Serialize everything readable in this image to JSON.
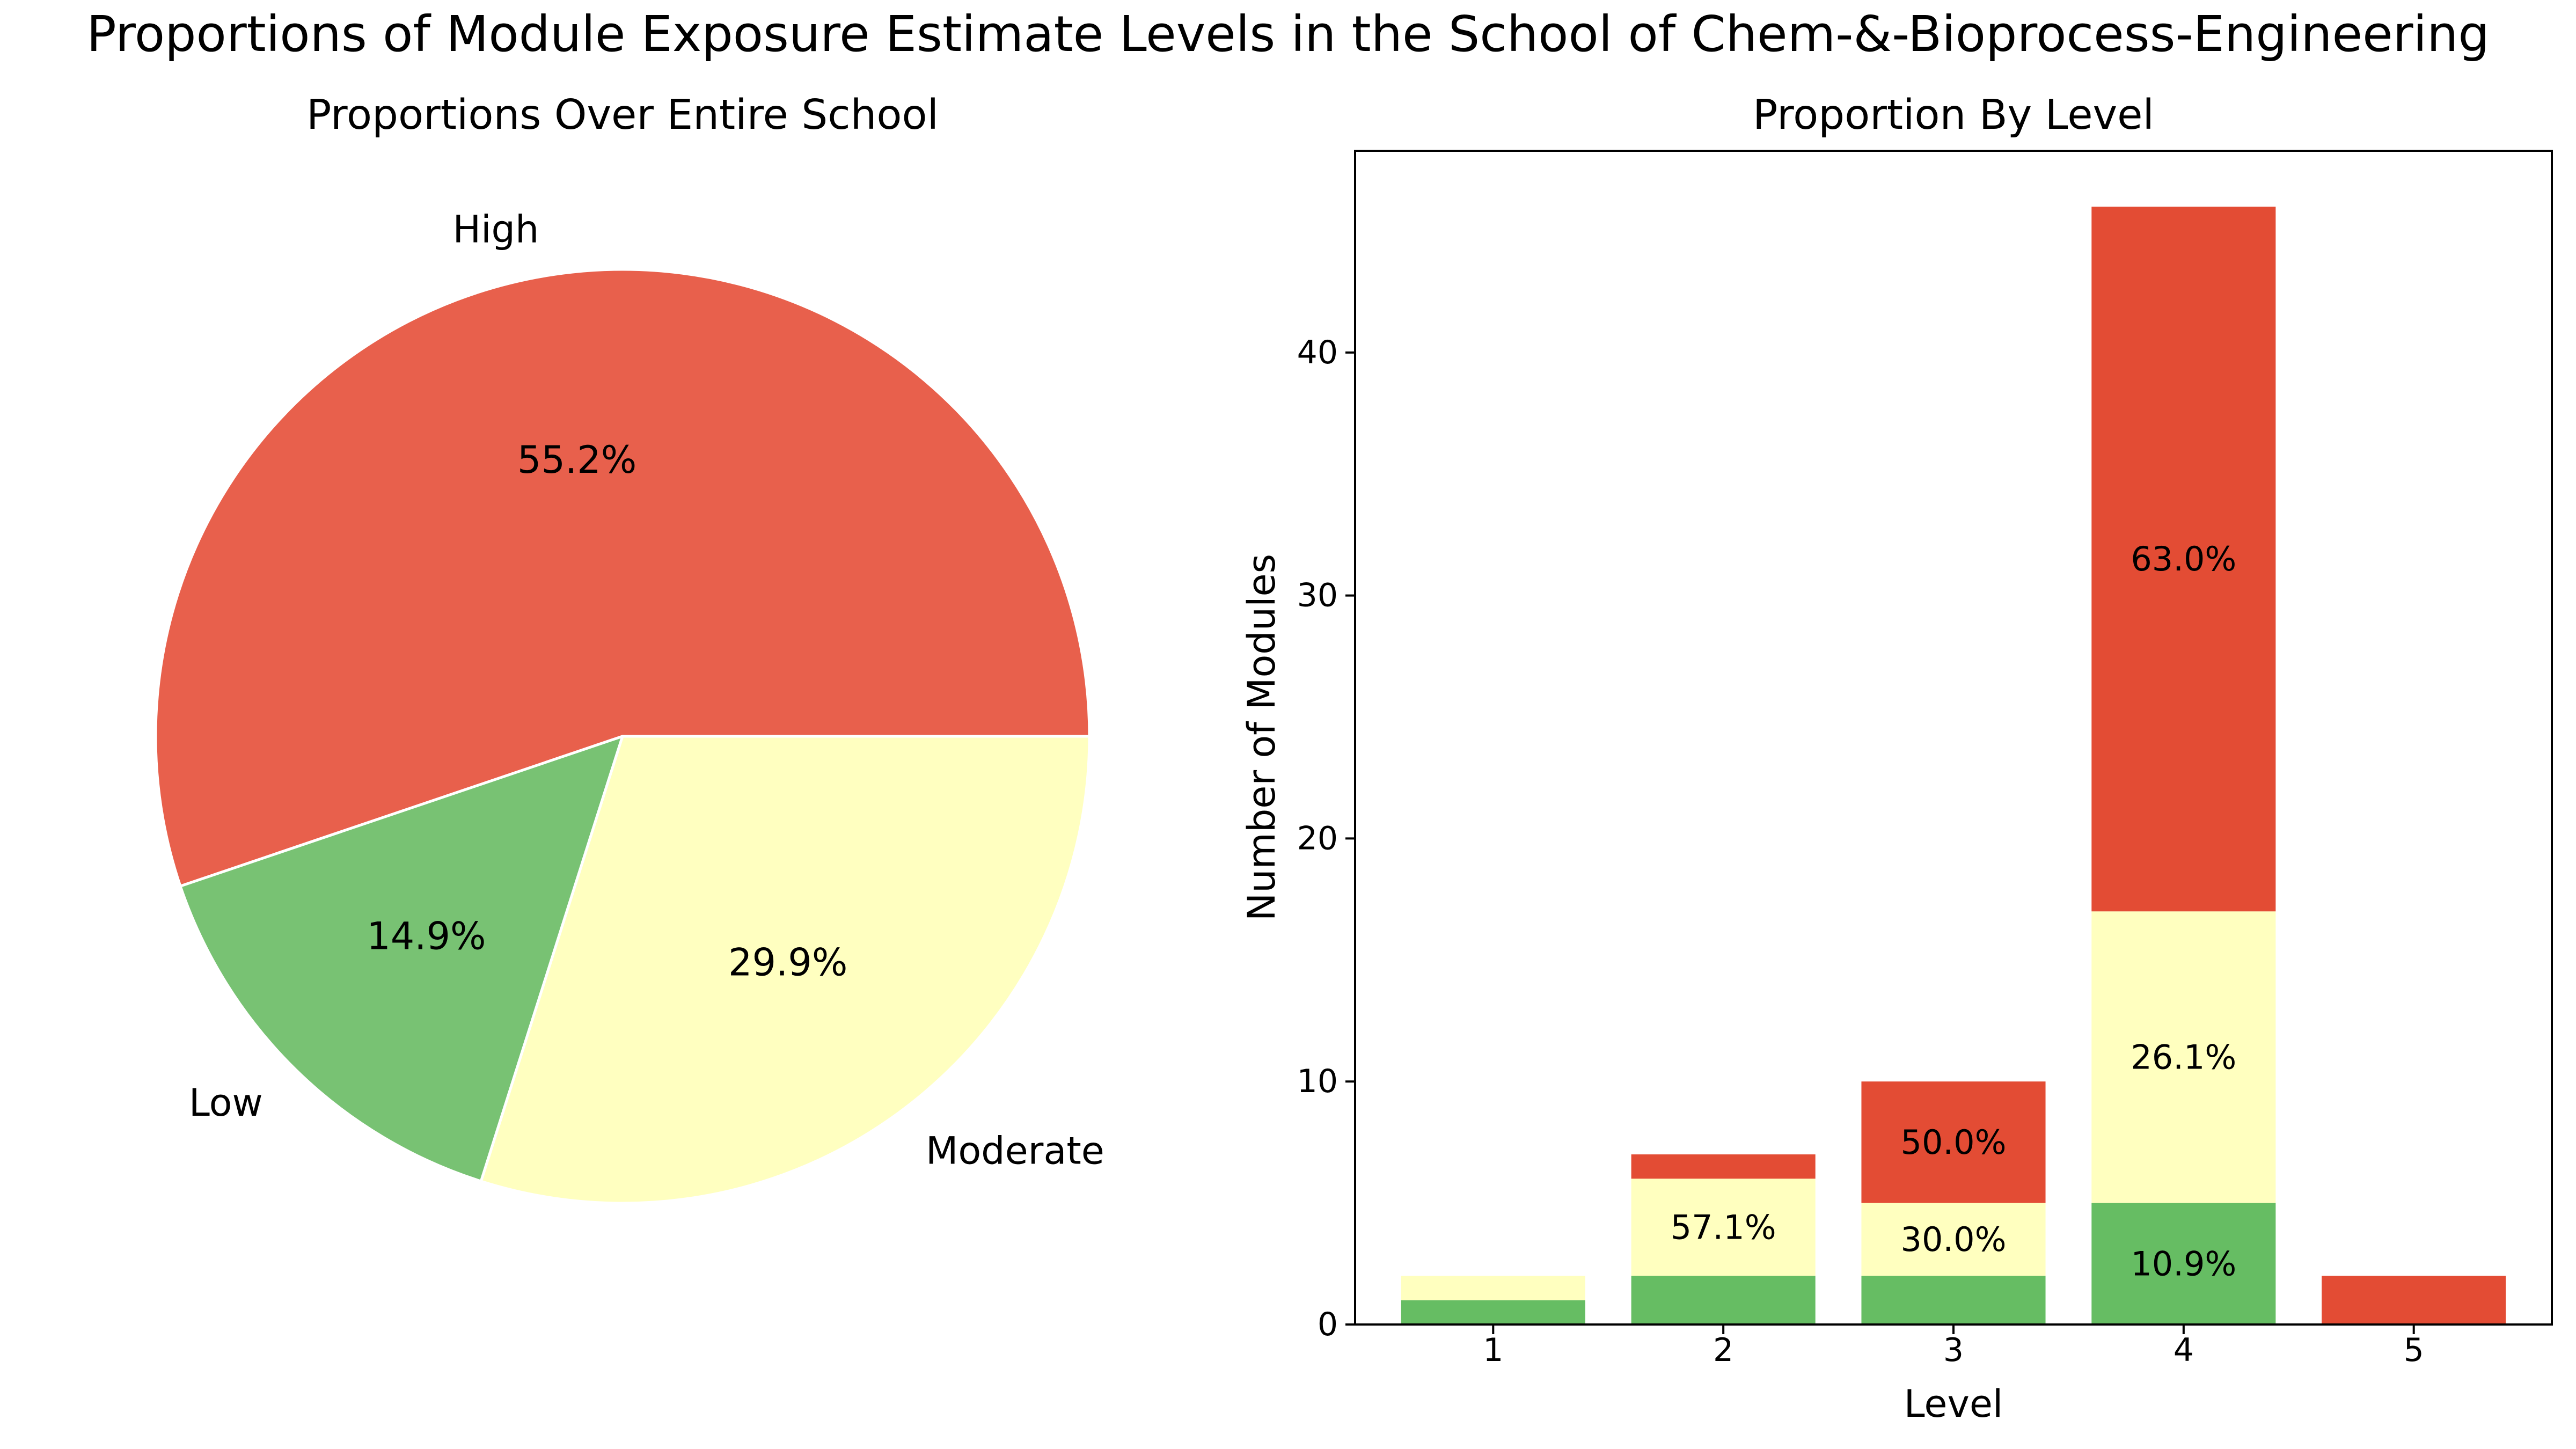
{
  "title": "Proportions of Module Exposure Estimate Levels in the School of Chem-&-Bioprocess-Engineering",
  "chart_data": [
    {
      "type": "pie",
      "title": "Proportions Over Entire School",
      "slices": [
        {
          "label": "High",
          "percent": 55.2,
          "pct_label": "55.2%",
          "color": "#e8604c"
        },
        {
          "label": "Low",
          "percent": 14.9,
          "pct_label": "14.9%",
          "color": "#78c273"
        },
        {
          "label": "Moderate",
          "percent": 29.9,
          "pct_label": "29.9%",
          "color": "#ffffc0"
        }
      ],
      "slice_edge_color": "#ffffff"
    },
    {
      "type": "bar",
      "stacked": true,
      "title": "Proportion By Level",
      "xlabel": "Level",
      "ylabel": "Number of Modules",
      "categories": [
        "1",
        "2",
        "3",
        "4",
        "5"
      ],
      "ylim": [
        0,
        48.3
      ],
      "yticks": [
        0,
        10,
        20,
        30,
        40
      ],
      "series": [
        {
          "key": "low",
          "values": [
            1,
            2,
            2,
            5,
            0
          ],
          "color": "#66bd63"
        },
        {
          "key": "moderate",
          "values": [
            1,
            4,
            3,
            12,
            0
          ],
          "color": "#ffffbf"
        },
        {
          "key": "high",
          "values": [
            0,
            1,
            5,
            29,
            2
          ],
          "color": "#e34c34"
        }
      ],
      "data_labels": [
        {
          "category": "2",
          "series": "moderate",
          "text": "57.1%"
        },
        {
          "category": "3",
          "series": "high",
          "text": "50.0%"
        },
        {
          "category": "3",
          "series": "moderate",
          "text": "30.0%"
        },
        {
          "category": "4",
          "series": "high",
          "text": "63.0%"
        },
        {
          "category": "4",
          "series": "moderate",
          "text": "26.1%"
        },
        {
          "category": "4",
          "series": "low",
          "text": "10.9%"
        }
      ],
      "grid": false
    }
  ]
}
